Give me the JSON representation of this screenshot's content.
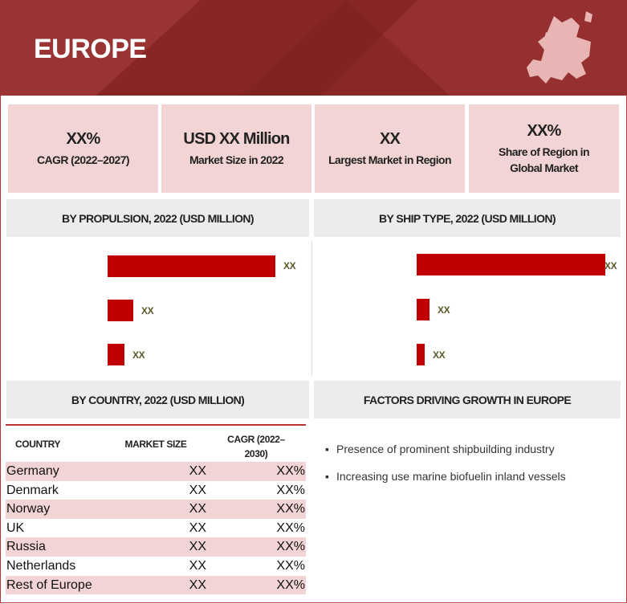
{
  "header": {
    "title": "EUROPE"
  },
  "kpis": [
    {
      "value": "XX%",
      "label": "CAGR (2022–2027)"
    },
    {
      "value": "USD XX Million",
      "label": "Market Size in 2022"
    },
    {
      "value": "XX",
      "label": "Largest Market in Region"
    },
    {
      "value": "XX%",
      "label": "Share of Region in Global Market"
    }
  ],
  "propulsion": {
    "title": "BY PROPULSION, 2022 (USD MILLION)",
    "bar_labels": [
      "XX",
      "XX",
      "XX"
    ]
  },
  "ship_type": {
    "title": "BY SHIP TYPE,  2022 (USD MILLION)",
    "bar_labels": [
      "XX",
      "XX",
      "XX"
    ]
  },
  "country": {
    "title": "BY COUNTRY, 2022 (USD MILLION)",
    "columns": [
      "COUNTRY",
      "MARKET SIZE",
      "CAGR (2022–2030)"
    ],
    "rows": [
      [
        "Germany",
        "XX",
        "XX%"
      ],
      [
        "Denmark",
        "XX",
        "XX%"
      ],
      [
        "Norway",
        "XX",
        "XX%"
      ],
      [
        "UK",
        "XX",
        "XX%"
      ],
      [
        "Russia",
        "XX",
        "XX%"
      ],
      [
        "Netherlands",
        "XX",
        "XX%"
      ],
      [
        "Rest of Europe",
        "XX",
        "XX%"
      ]
    ]
  },
  "factors": {
    "title": "FACTORS DRIVING GROWTH IN EUROPE",
    "items": [
      "Presence of prominent shipbuilding  industry",
      "Increasing use marine biofuelin inland vessels"
    ]
  }
}
